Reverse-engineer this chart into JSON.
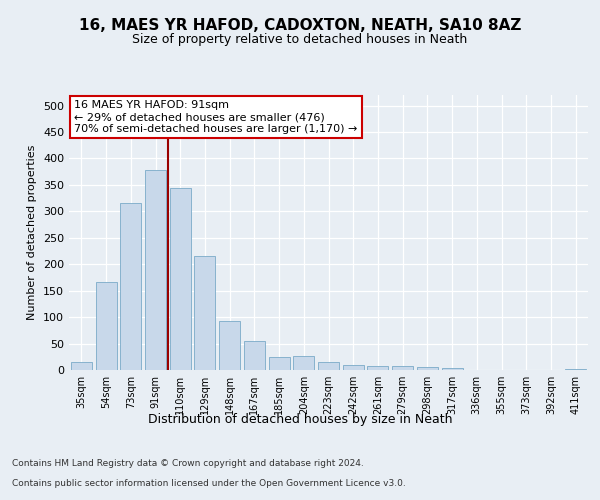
{
  "title": "16, MAES YR HAFOD, CADOXTON, NEATH, SA10 8AZ",
  "subtitle": "Size of property relative to detached houses in Neath",
  "xlabel": "Distribution of detached houses by size in Neath",
  "ylabel": "Number of detached properties",
  "categories": [
    "35sqm",
    "54sqm",
    "73sqm",
    "91sqm",
    "110sqm",
    "129sqm",
    "148sqm",
    "167sqm",
    "185sqm",
    "204sqm",
    "223sqm",
    "242sqm",
    "261sqm",
    "279sqm",
    "298sqm",
    "317sqm",
    "336sqm",
    "355sqm",
    "373sqm",
    "392sqm",
    "411sqm"
  ],
  "values": [
    15,
    167,
    315,
    378,
    345,
    215,
    93,
    55,
    25,
    27,
    15,
    10,
    8,
    7,
    5,
    3,
    0,
    0,
    0,
    0,
    2
  ],
  "bar_color": "#c8d8ea",
  "bar_edge_color": "#7aaac8",
  "vline_index": 3,
  "vline_color": "#990000",
  "annotation_text": "16 MAES YR HAFOD: 91sqm\n← 29% of detached houses are smaller (476)\n70% of semi-detached houses are larger (1,170) →",
  "annotation_box_facecolor": "#ffffff",
  "annotation_box_edgecolor": "#cc0000",
  "ylim": [
    0,
    520
  ],
  "yticks": [
    0,
    50,
    100,
    150,
    200,
    250,
    300,
    350,
    400,
    450,
    500
  ],
  "footer_line1": "Contains HM Land Registry data © Crown copyright and database right 2024.",
  "footer_line2": "Contains public sector information licensed under the Open Government Licence v3.0.",
  "bg_color": "#e8eef4",
  "plot_bg_color": "#e8eef4",
  "title_fontsize": 11,
  "subtitle_fontsize": 9,
  "ylabel_fontsize": 8,
  "xlabel_fontsize": 9,
  "tick_fontsize": 8,
  "xtick_fontsize": 7,
  "footer_fontsize": 6.5,
  "annotation_fontsize": 8
}
